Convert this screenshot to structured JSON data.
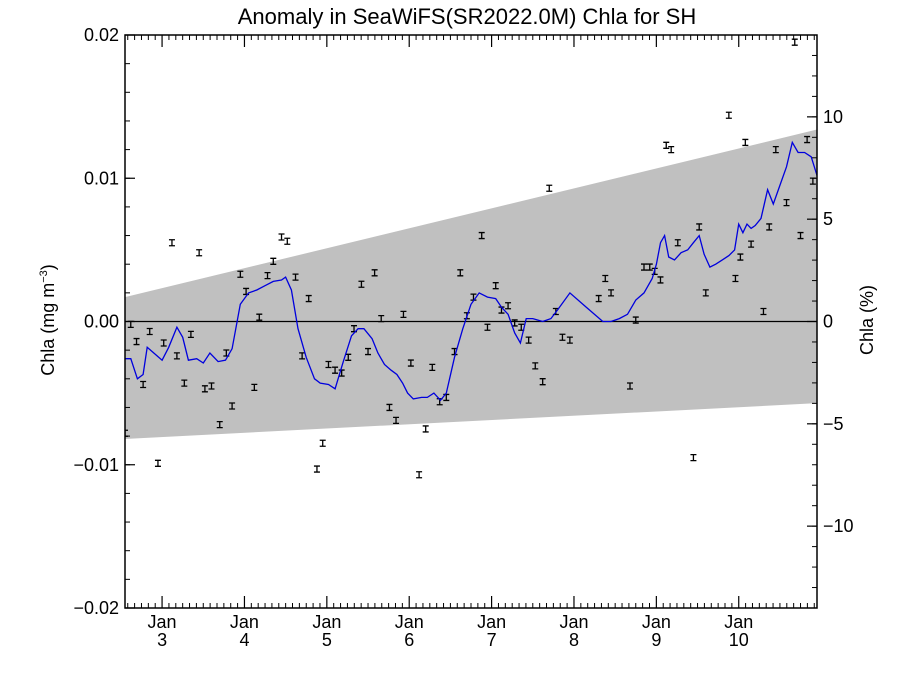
{
  "chart_data": {
    "type": "scatter",
    "title": "Anomaly in SeaWiFS(SR2022.0M) Chla for SH",
    "ylabel_left": {
      "main": "Chla (mg m",
      "sup": "−3",
      "close": ")"
    },
    "ylabel_right": "Chla (%)",
    "y_left": {
      "min": -0.02,
      "max": 0.02,
      "ticks": [
        -0.02,
        -0.01,
        0.0,
        0.01,
        0.02
      ],
      "tick_labels": [
        "−0.02",
        "−0.01",
        "0.00",
        "0.01",
        "0.02"
      ]
    },
    "y_right": {
      "min": -14.0,
      "max": 14.0,
      "ticks": [
        -10,
        -5,
        0,
        5,
        10
      ],
      "tick_labels": [
        "−10",
        "−5",
        "0",
        "5",
        "10"
      ]
    },
    "x": {
      "min": 2.55,
      "max": 10.95,
      "major": [
        3,
        4,
        5,
        6,
        7,
        8,
        9,
        10
      ],
      "month_label": "Jan",
      "year_labels": [
        "3",
        "4",
        "5",
        "6",
        "7",
        "8",
        "9",
        "10"
      ]
    },
    "zero_line": true,
    "band": {
      "label": "",
      "start": [
        2.55,
        0.0017,
        -0.0082
      ],
      "end": [
        10.95,
        0.0134,
        -0.0057
      ],
      "color": "#c0c0c0"
    },
    "points": [
      [
        2.55,
        -0.0078
      ],
      [
        2.62,
        -0.0002
      ],
      [
        2.69,
        -0.0014
      ],
      [
        2.77,
        -0.0044
      ],
      [
        2.85,
        -0.0007
      ],
      [
        2.95,
        -0.0099
      ],
      [
        3.02,
        -0.0015
      ],
      [
        3.12,
        0.0055
      ],
      [
        3.18,
        -0.0024
      ],
      [
        3.27,
        -0.0043
      ],
      [
        3.35,
        -0.0009
      ],
      [
        3.45,
        0.0048
      ],
      [
        3.52,
        -0.0047
      ],
      [
        3.6,
        -0.0045
      ],
      [
        3.7,
        -0.0072
      ],
      [
        3.78,
        -0.0022
      ],
      [
        3.85,
        -0.0059
      ],
      [
        3.95,
        0.0033
      ],
      [
        4.02,
        0.0021
      ],
      [
        4.12,
        -0.0046
      ],
      [
        4.18,
        0.0003
      ],
      [
        4.28,
        0.0032
      ],
      [
        4.35,
        0.0042
      ],
      [
        4.45,
        0.0059
      ],
      [
        4.52,
        0.0056
      ],
      [
        4.62,
        0.0031
      ],
      [
        4.7,
        -0.0024
      ],
      [
        4.78,
        0.0016
      ],
      [
        4.88,
        -0.0103
      ],
      [
        4.95,
        -0.0085
      ],
      [
        5.02,
        -0.003
      ],
      [
        5.1,
        -0.0034
      ],
      [
        5.18,
        -0.0036
      ],
      [
        5.26,
        -0.0025
      ],
      [
        5.33,
        -0.0005
      ],
      [
        5.42,
        0.0026
      ],
      [
        5.5,
        -0.0021
      ],
      [
        5.58,
        0.0034
      ],
      [
        5.66,
        0.0002
      ],
      [
        5.76,
        -0.006
      ],
      [
        5.84,
        -0.0069
      ],
      [
        5.93,
        0.0005
      ],
      [
        6.02,
        -0.0029
      ],
      [
        6.12,
        -0.0107
      ],
      [
        6.2,
        -0.0075
      ],
      [
        6.28,
        -0.0032
      ],
      [
        6.37,
        -0.0056
      ],
      [
        6.45,
        -0.0053
      ],
      [
        6.55,
        -0.0021
      ],
      [
        6.62,
        0.0034
      ],
      [
        6.7,
        0.0004
      ],
      [
        6.78,
        0.0017
      ],
      [
        6.88,
        0.006
      ],
      [
        6.95,
        -0.0004
      ],
      [
        7.05,
        0.0025
      ],
      [
        7.12,
        0.0008
      ],
      [
        7.2,
        0.0011
      ],
      [
        7.28,
        -0.0001
      ],
      [
        7.36,
        -0.0004
      ],
      [
        7.45,
        -0.0013
      ],
      [
        7.53,
        -0.0031
      ],
      [
        7.62,
        -0.0042
      ],
      [
        7.7,
        0.0093
      ],
      [
        7.78,
        0.0007
      ],
      [
        7.86,
        -0.0011
      ],
      [
        7.95,
        -0.0013
      ],
      [
        8.3,
        0.0016
      ],
      [
        8.38,
        0.003
      ],
      [
        8.45,
        0.002
      ],
      [
        8.68,
        -0.0045
      ],
      [
        8.75,
        0.0001
      ],
      [
        8.85,
        0.0038
      ],
      [
        8.92,
        0.0038
      ],
      [
        8.98,
        0.0035
      ],
      [
        9.05,
        0.0029
      ],
      [
        9.12,
        0.0123
      ],
      [
        9.18,
        0.012
      ],
      [
        9.26,
        0.0055
      ],
      [
        9.45,
        -0.0095
      ],
      [
        9.52,
        0.0066
      ],
      [
        9.6,
        0.002
      ],
      [
        9.88,
        0.0144
      ],
      [
        9.96,
        0.003
      ],
      [
        10.02,
        0.0045
      ],
      [
        10.08,
        0.0125
      ],
      [
        10.15,
        0.0054
      ],
      [
        10.3,
        0.0007
      ],
      [
        10.37,
        0.0066
      ],
      [
        10.45,
        0.012
      ],
      [
        10.58,
        0.0083
      ],
      [
        10.68,
        0.0195
      ],
      [
        10.75,
        0.006
      ],
      [
        10.83,
        0.0127
      ],
      [
        10.9,
        0.0098
      ]
    ],
    "line": {
      "color": "#0000dd",
      "values": [
        [
          2.55,
          -0.0026
        ],
        [
          2.62,
          -0.0026
        ],
        [
          2.7,
          -0.004
        ],
        [
          2.77,
          -0.0037
        ],
        [
          2.82,
          -0.0018
        ],
        [
          2.9,
          -0.0022
        ],
        [
          3.0,
          -0.0027
        ],
        [
          3.08,
          -0.0018
        ],
        [
          3.18,
          -0.0004
        ],
        [
          3.25,
          -0.0011
        ],
        [
          3.32,
          -0.0027
        ],
        [
          3.42,
          -0.0026
        ],
        [
          3.5,
          -0.0029
        ],
        [
          3.58,
          -0.0022
        ],
        [
          3.68,
          -0.0028
        ],
        [
          3.77,
          -0.0027
        ],
        [
          3.85,
          -0.0019
        ],
        [
          3.95,
          0.0012
        ],
        [
          4.05,
          0.002
        ],
        [
          4.15,
          0.0022
        ],
        [
          4.25,
          0.0025
        ],
        [
          4.35,
          0.0028
        ],
        [
          4.45,
          0.0029
        ],
        [
          4.5,
          0.0031
        ],
        [
          4.57,
          0.0022
        ],
        [
          4.65,
          -0.0005
        ],
        [
          4.75,
          -0.0025
        ],
        [
          4.85,
          -0.004
        ],
        [
          4.92,
          -0.0043
        ],
        [
          5.02,
          -0.0044
        ],
        [
          5.1,
          -0.0047
        ],
        [
          5.2,
          -0.0028
        ],
        [
          5.3,
          -0.001
        ],
        [
          5.38,
          -0.0005
        ],
        [
          5.45,
          -0.0005
        ],
        [
          5.55,
          -0.0012
        ],
        [
          5.62,
          -0.0022
        ],
        [
          5.7,
          -0.003
        ],
        [
          5.78,
          -0.0034
        ],
        [
          5.85,
          -0.0037
        ],
        [
          5.92,
          -0.0043
        ],
        [
          5.98,
          -0.005
        ],
        [
          6.05,
          -0.0054
        ],
        [
          6.15,
          -0.0053
        ],
        [
          6.22,
          -0.0053
        ],
        [
          6.3,
          -0.005
        ],
        [
          6.38,
          -0.0055
        ],
        [
          6.45,
          -0.005
        ],
        [
          6.55,
          -0.0025
        ],
        [
          6.65,
          -0.0005
        ],
        [
          6.75,
          0.0012
        ],
        [
          6.85,
          0.002
        ],
        [
          6.95,
          0.0017
        ],
        [
          7.05,
          0.0016
        ],
        [
          7.12,
          0.001
        ],
        [
          7.2,
          0.0005
        ],
        [
          7.28,
          -0.0008
        ],
        [
          7.35,
          -0.0015
        ],
        [
          7.42,
          0.0002
        ],
        [
          7.5,
          0.0002
        ],
        [
          7.62,
          0.0
        ],
        [
          7.72,
          0.0002
        ],
        [
          7.8,
          0.0008
        ],
        [
          7.95,
          0.002
        ],
        [
          8.15,
          0.001
        ],
        [
          8.35,
          0.0
        ],
        [
          8.45,
          0.0
        ],
        [
          8.55,
          0.0002
        ],
        [
          8.65,
          0.0005
        ],
        [
          8.75,
          0.0015
        ],
        [
          8.85,
          0.002
        ],
        [
          8.95,
          0.003
        ],
        [
          9.0,
          0.004
        ],
        [
          9.05,
          0.0055
        ],
        [
          9.1,
          0.006
        ],
        [
          9.15,
          0.0045
        ],
        [
          9.22,
          0.0043
        ],
        [
          9.3,
          0.0048
        ],
        [
          9.38,
          0.005
        ],
        [
          9.45,
          0.0055
        ],
        [
          9.52,
          0.006
        ],
        [
          9.58,
          0.0047
        ],
        [
          9.65,
          0.0038
        ],
        [
          9.72,
          0.004
        ],
        [
          9.8,
          0.0043
        ],
        [
          9.88,
          0.0046
        ],
        [
          9.95,
          0.005
        ],
        [
          10.0,
          0.0068
        ],
        [
          10.05,
          0.0062
        ],
        [
          10.1,
          0.0068
        ],
        [
          10.15,
          0.0065
        ],
        [
          10.2,
          0.0067
        ],
        [
          10.27,
          0.0072
        ],
        [
          10.35,
          0.0092
        ],
        [
          10.42,
          0.0082
        ],
        [
          10.5,
          0.0095
        ],
        [
          10.58,
          0.0108
        ],
        [
          10.65,
          0.0125
        ],
        [
          10.72,
          0.0118
        ],
        [
          10.8,
          0.0118
        ],
        [
          10.88,
          0.0115
        ],
        [
          10.95,
          0.0102
        ]
      ]
    },
    "grid": false,
    "legend": "none"
  }
}
